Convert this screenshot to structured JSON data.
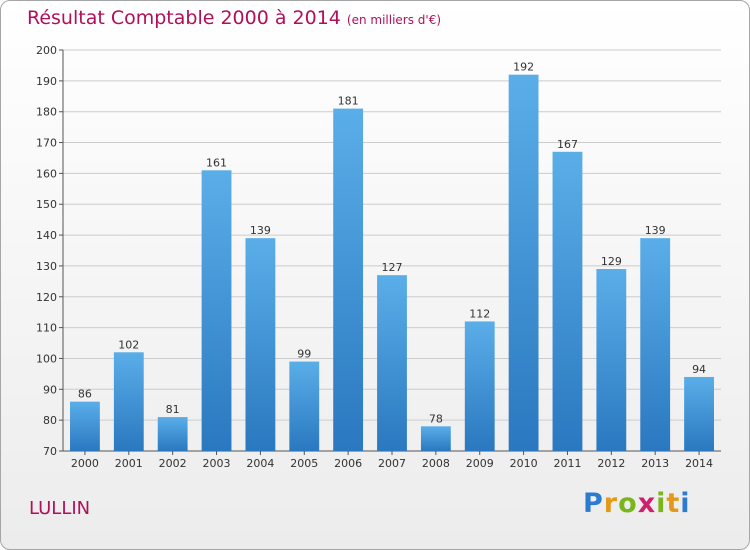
{
  "header": {
    "title": "Résultat Comptable 2000 à 2014",
    "subtitle": "(en milliers d'€)"
  },
  "footer": {
    "town": "LULLIN",
    "logo": "Proxiti"
  },
  "colors": {
    "title": "#b0105a",
    "bar_top": "#5aaee8",
    "bar_bottom": "#2a78c0",
    "grid": "#cccccc"
  },
  "chart_data": {
    "type": "bar",
    "title": "Résultat Comptable 2000 à 2014",
    "subtitle": "(en milliers d'€)",
    "xlabel": "",
    "ylabel": "",
    "categories": [
      "2000",
      "2001",
      "2002",
      "2003",
      "2004",
      "2005",
      "2006",
      "2007",
      "2008",
      "2009",
      "2010",
      "2011",
      "2012",
      "2013",
      "2014"
    ],
    "values": [
      86,
      102,
      81,
      161,
      139,
      99,
      181,
      127,
      78,
      112,
      192,
      167,
      129,
      139,
      94
    ],
    "ylim": [
      70,
      200
    ],
    "yticks": [
      70,
      80,
      90,
      100,
      110,
      120,
      130,
      140,
      150,
      160,
      170,
      180,
      190,
      200
    ],
    "grid": true
  }
}
